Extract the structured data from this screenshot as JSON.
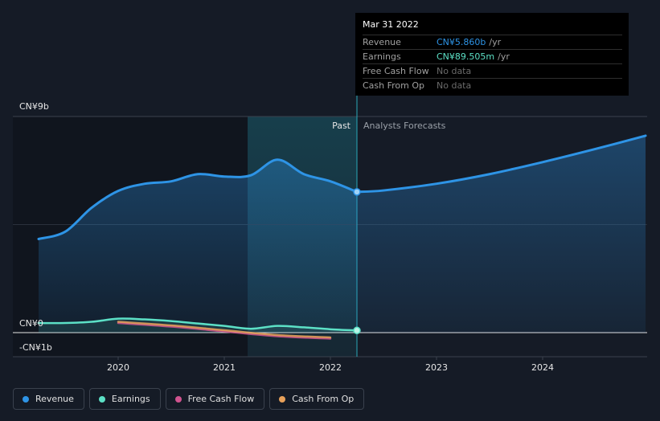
{
  "chart_data": {
    "type": "line",
    "y_unit_label_top": "CN¥9b",
    "y_unit_label_zero": "CN¥0",
    "y_unit_label_neg": "-CN¥1b",
    "ylim": [
      -1,
      9
    ],
    "x_ticks": [
      "2020",
      "2021",
      "2022",
      "2023",
      "2024"
    ],
    "x_tick_values": [
      2020,
      2021,
      2022,
      2023,
      2024
    ],
    "xlim": [
      2018.75,
      2024.97
    ],
    "past_label": "Past",
    "forecast_label": "Analysts Forecasts",
    "forecast_start": 2022.25,
    "series": [
      {
        "name": "Revenue",
        "color": "#2e94e6",
        "x": [
          2019.25,
          2019.5,
          2019.75,
          2020.0,
          2020.25,
          2020.5,
          2020.75,
          2021.0,
          2021.25,
          2021.5,
          2021.75,
          2022.0,
          2022.25
        ],
        "y": [
          3.9,
          4.2,
          5.2,
          5.9,
          6.2,
          6.3,
          6.6,
          6.5,
          6.55,
          7.2,
          6.6,
          6.3,
          5.86
        ]
      },
      {
        "name": "Revenue Forecast",
        "color": "#2e94e6",
        "x": [
          2022.25,
          2022.5,
          2023.0,
          2023.5,
          2024.0,
          2024.5,
          2024.97
        ],
        "y": [
          5.86,
          5.92,
          6.2,
          6.6,
          7.1,
          7.65,
          8.2
        ]
      },
      {
        "name": "Earnings",
        "color": "#5ce0c6",
        "x": [
          2019.25,
          2019.5,
          2019.75,
          2020.0,
          2020.25,
          2020.5,
          2020.75,
          2021.0,
          2021.25,
          2021.5,
          2021.75,
          2022.0,
          2022.25
        ],
        "y": [
          0.4,
          0.4,
          0.45,
          0.58,
          0.55,
          0.48,
          0.38,
          0.28,
          0.16,
          0.28,
          0.22,
          0.14,
          0.09
        ]
      },
      {
        "name": "Free Cash Flow",
        "color": "#d0538f",
        "x": [
          2020.0,
          2020.5,
          2021.0,
          2021.5,
          2022.0
        ],
        "y": [
          0.4,
          0.25,
          0.05,
          -0.15,
          -0.25
        ]
      },
      {
        "name": "Cash From Op",
        "color": "#e8a15a",
        "x": [
          2020.0,
          2020.5,
          2021.0,
          2021.5,
          2022.0
        ],
        "y": [
          0.45,
          0.3,
          0.1,
          -0.1,
          -0.2
        ]
      }
    ]
  },
  "tooltip": {
    "date": "Mar 31 2022",
    "rows": [
      {
        "label": "Revenue",
        "value": "CN¥5.860b",
        "unit": "/yr",
        "color": "#2e94e6"
      },
      {
        "label": "Earnings",
        "value": "CN¥89.505m",
        "unit": "/yr",
        "color": "#5ce0c6"
      },
      {
        "label": "Free Cash Flow",
        "value": "No data",
        "unit": "",
        "color": "#6a6a6a"
      },
      {
        "label": "Cash From Op",
        "value": "No data",
        "unit": "",
        "color": "#6a6a6a"
      }
    ]
  },
  "legend": [
    {
      "label": "Revenue",
      "color": "#2e94e6"
    },
    {
      "label": "Earnings",
      "color": "#5ce0c6"
    },
    {
      "label": "Free Cash Flow",
      "color": "#d0538f"
    },
    {
      "label": "Cash From Op",
      "color": "#e8a15a"
    }
  ]
}
